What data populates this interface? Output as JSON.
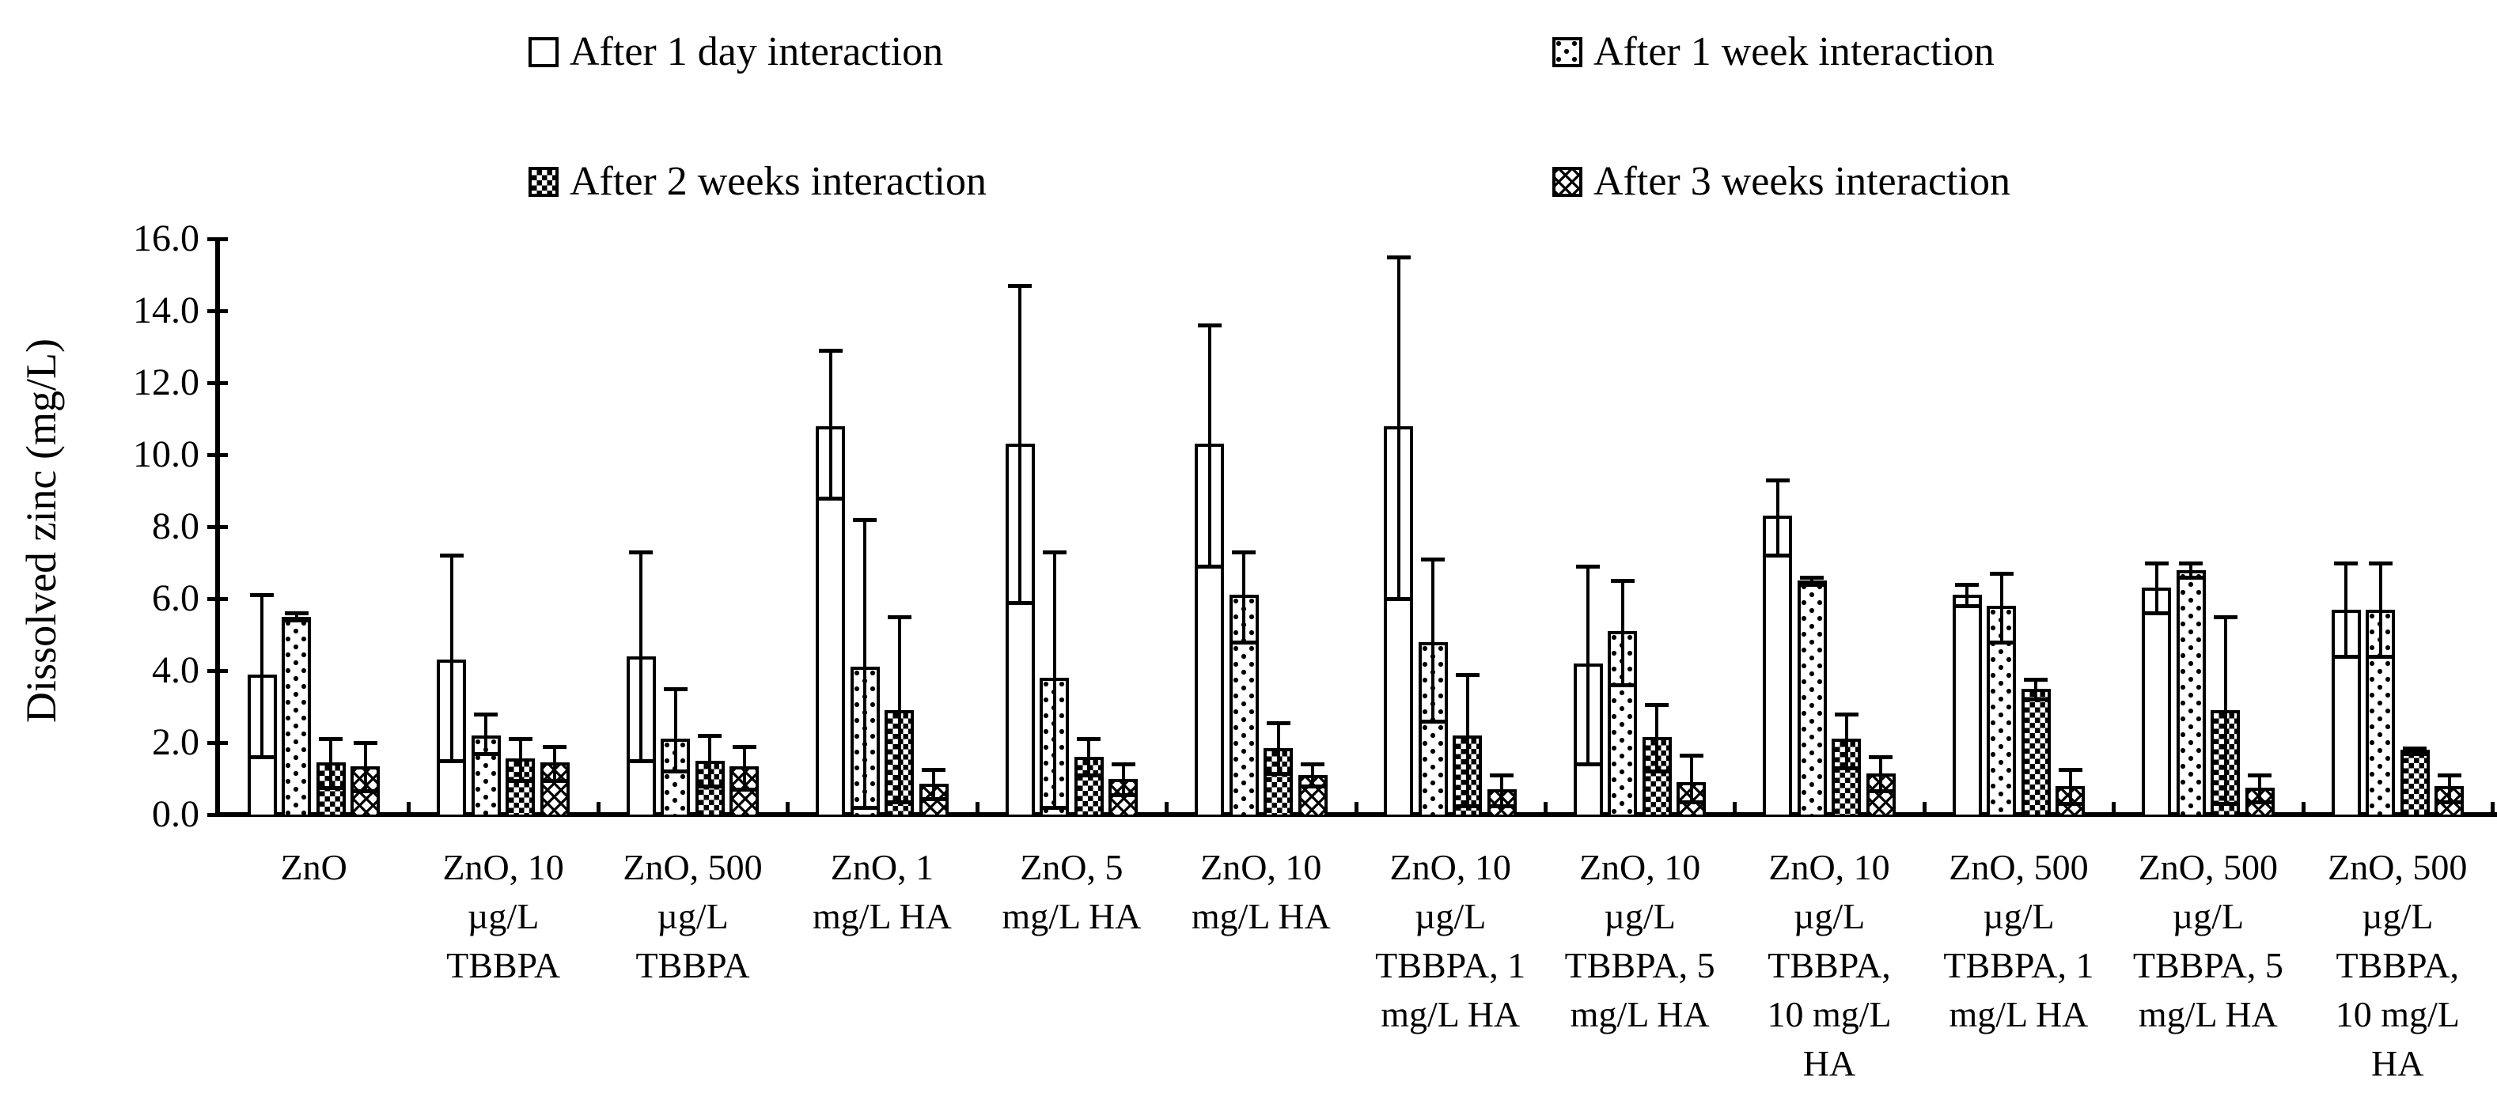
{
  "colors": {
    "background": "#ffffff",
    "ink": "#000000",
    "bar_fill": "#ffffff",
    "bar_border": "#000000"
  },
  "legend": {
    "items": [
      {
        "label": "After 1 day interaction",
        "pattern": "plain"
      },
      {
        "label": "After 1 week interaction",
        "pattern": "dots"
      },
      {
        "label": "After 2 weeks interaction",
        "pattern": "checker"
      },
      {
        "label": "After 3 weeks interaction",
        "pattern": "crosshatch"
      }
    ]
  },
  "chart_data": {
    "type": "bar",
    "title": "",
    "xlabel": "",
    "ylabel": "Dissolved zinc (mg/L)",
    "ylim": [
      0,
      16
    ],
    "ytick_step": 2,
    "ytick_labels": [
      "16.0",
      "14.0",
      "12.0",
      "10.0",
      "8.0",
      "6.0",
      "4.0",
      "2.0",
      "0.0"
    ],
    "grid": false,
    "legend_position": "top",
    "error_bars": true,
    "categories": [
      "ZnO",
      "ZnO, 10\nµg/L\nTBBPA",
      "ZnO, 500\nµg/L\nTBBPA",
      "ZnO, 1\nmg/L HA",
      "ZnO, 5\nmg/L HA",
      "ZnO, 10\nmg/L HA",
      "ZnO, 10\nµg/L\nTBBPA, 1\nmg/L HA",
      "ZnO, 10\nµg/L\nTBBPA, 5\nmg/L HA",
      "ZnO, 10\nµg/L\nTBBPA,\n10 mg/L\nHA",
      "ZnO, 500\nµg/L\nTBBPA, 1\nmg/L HA",
      "ZnO, 500\nµg/L\nTBBPA, 5\nmg/L HA",
      "ZnO, 500\nµg/L\nTBBPA,\n10 mg/L\nHA"
    ],
    "series": [
      {
        "name": "After 1 day interaction",
        "pattern": "plain",
        "values": [
          3.9,
          4.3,
          4.4,
          10.8,
          10.3,
          10.3,
          10.8,
          4.2,
          8.3,
          6.1,
          6.3,
          5.7
        ],
        "err_high": [
          6.1,
          7.2,
          7.3,
          12.9,
          14.7,
          13.6,
          15.5,
          6.9,
          9.3,
          6.4,
          7.0,
          7.0
        ],
        "err_low": [
          1.6,
          1.5,
          1.5,
          8.8,
          5.9,
          6.9,
          6.0,
          1.4,
          7.2,
          5.8,
          5.6,
          4.4
        ]
      },
      {
        "name": "After 1 week interaction",
        "pattern": "dots",
        "values": [
          5.5,
          2.2,
          2.1,
          4.1,
          3.8,
          6.1,
          4.8,
          5.1,
          6.5,
          5.8,
          6.8,
          5.7
        ],
        "err_high": [
          5.6,
          2.8,
          3.5,
          8.2,
          7.3,
          7.3,
          7.1,
          6.5,
          6.6,
          6.7,
          7.0,
          7.0
        ],
        "err_low": [
          5.4,
          1.7,
          1.2,
          0.2,
          0.2,
          4.8,
          2.6,
          3.6,
          6.4,
          4.8,
          6.6,
          4.4
        ]
      },
      {
        "name": "After 2 weeks interaction",
        "pattern": "checker",
        "values": [
          1.45,
          1.55,
          1.5,
          2.9,
          1.6,
          1.85,
          2.2,
          2.15,
          2.1,
          3.5,
          2.9,
          1.8
        ],
        "err_high": [
          2.1,
          2.1,
          2.2,
          5.5,
          2.1,
          2.55,
          3.9,
          3.05,
          2.8,
          3.75,
          5.5,
          1.85
        ],
        "err_low": [
          0.75,
          0.95,
          0.8,
          0.35,
          1.1,
          1.15,
          0.25,
          1.2,
          1.3,
          3.2,
          0.3,
          1.7
        ]
      },
      {
        "name": "After 3 weeks interaction",
        "pattern": "crosshatch",
        "values": [
          1.35,
          1.45,
          1.35,
          0.85,
          1.0,
          1.1,
          0.7,
          0.9,
          1.15,
          0.8,
          0.75,
          0.8
        ],
        "err_high": [
          2.0,
          1.9,
          1.9,
          1.25,
          1.4,
          1.4,
          1.1,
          1.65,
          1.6,
          1.25,
          1.1,
          1.1
        ],
        "err_low": [
          0.65,
          0.95,
          0.7,
          0.45,
          0.55,
          0.8,
          0.25,
          0.35,
          0.65,
          0.3,
          0.35,
          0.35
        ]
      }
    ]
  }
}
